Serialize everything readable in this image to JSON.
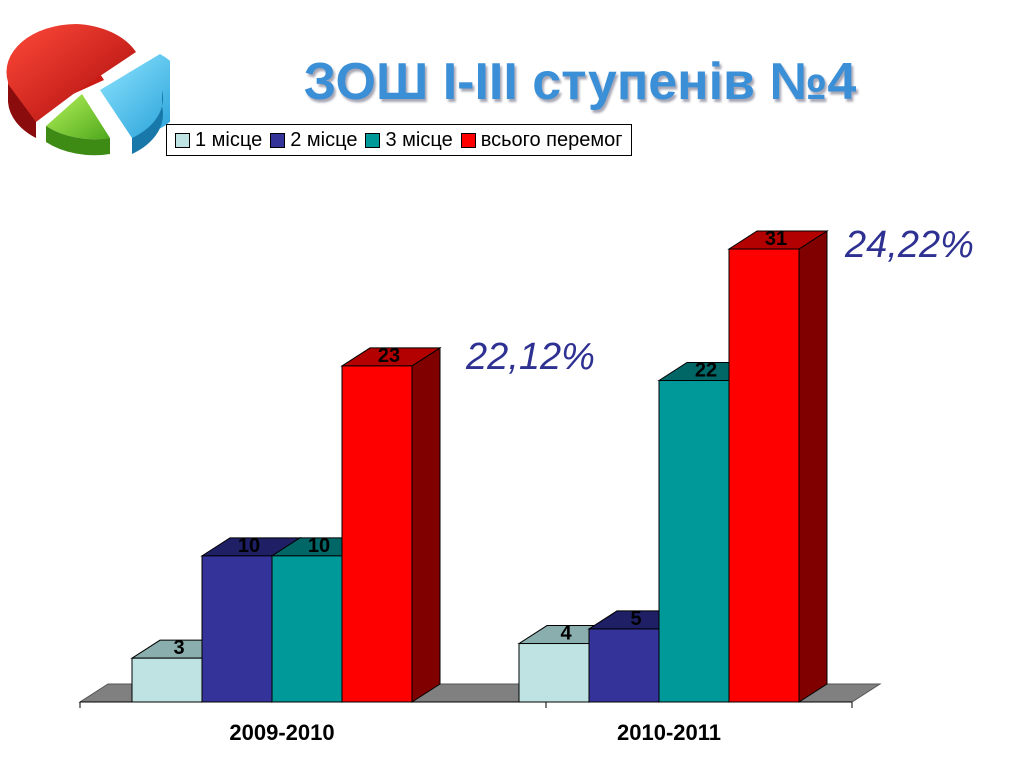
{
  "title": "ЗОШ І-ІІІ ступенів №4",
  "logo_icon": "pie-chart-icon",
  "colors": {
    "title": "#3b8fd6",
    "percent": "#2e3192",
    "floor": "#808080"
  },
  "annotations": [
    {
      "text": "22,12%",
      "category": "2009-2010"
    },
    {
      "text": "24,22%",
      "category": "2010-2011"
    }
  ],
  "chart_data": {
    "type": "bar",
    "style": "3d-clustered",
    "categories": [
      "2009-2010",
      "2010-2011"
    ],
    "series": [
      {
        "name": "1 місце",
        "values": [
          3,
          4
        ],
        "color": "#bfe3e3",
        "top": "#8aadad",
        "side": "#7a9a9a"
      },
      {
        "name": "2 місце",
        "values": [
          10,
          5
        ],
        "color": "#333399",
        "top": "#1f1f66",
        "side": "#1a1a55"
      },
      {
        "name": "3 місце",
        "values": [
          10,
          22
        ],
        "color": "#009999",
        "top": "#006666",
        "side": "#005555"
      },
      {
        "name": "всього перемог",
        "values": [
          23,
          31
        ],
        "color": "#ff0000",
        "top": "#b30000",
        "side": "#800000"
      }
    ],
    "data_labels": true,
    "legend_position": "top",
    "grid": false,
    "ylim": [
      0,
      31
    ]
  }
}
